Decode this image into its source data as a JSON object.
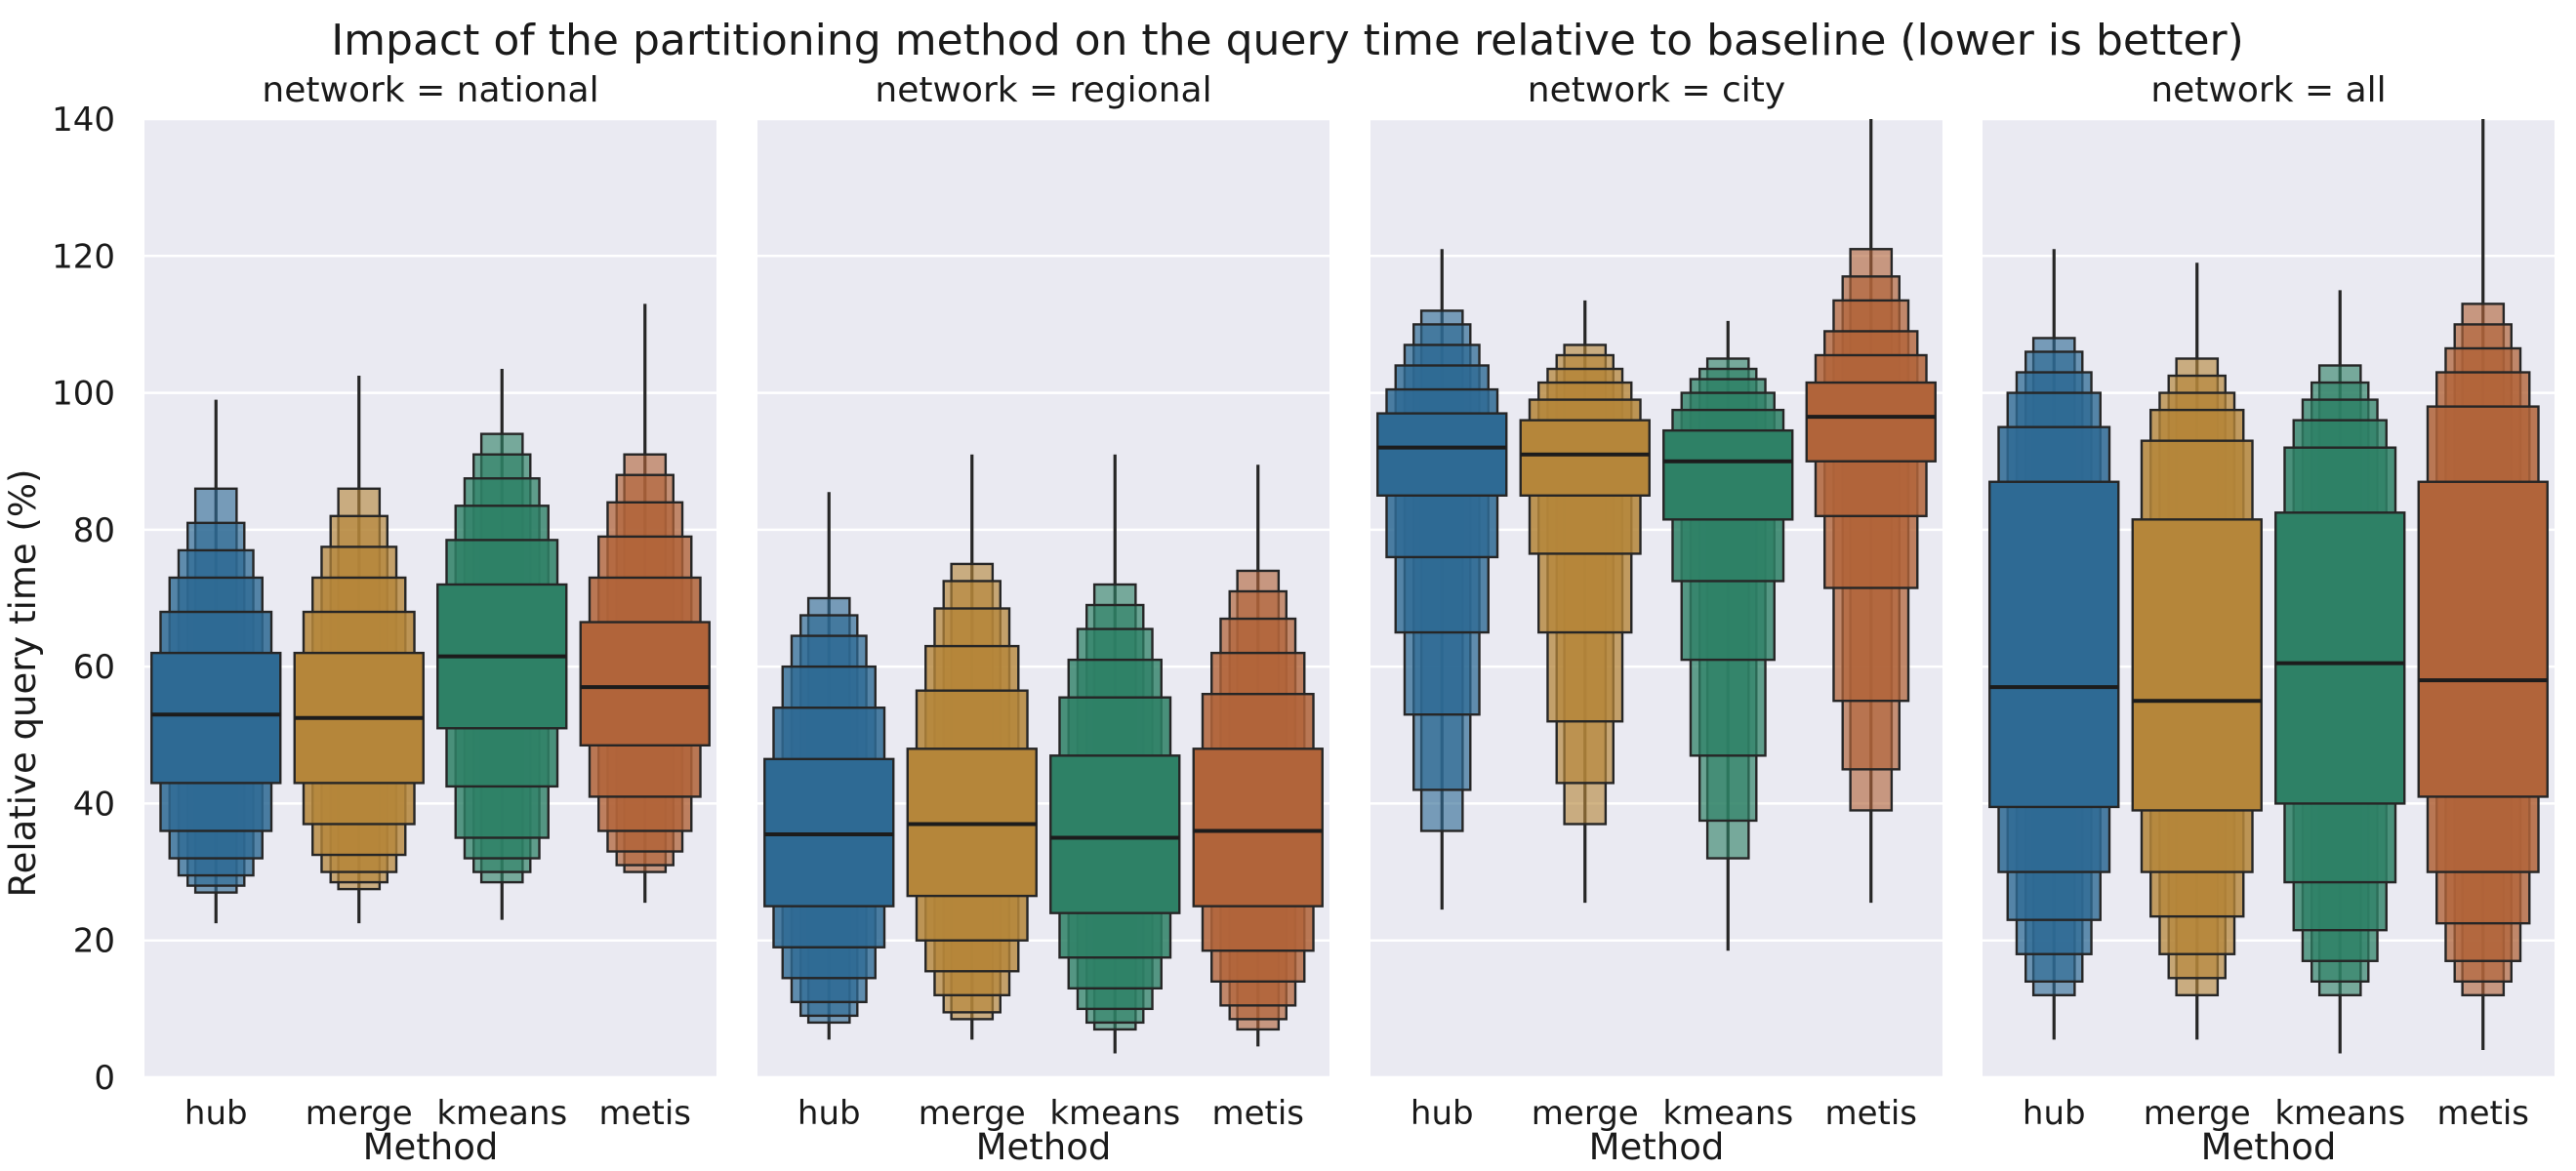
{
  "chart_data": {
    "type": "boxen",
    "title": "Impact of the partitioning method on the query time relative to baseline (lower is better)",
    "ylabel": "Relative query time (%)",
    "xlabel": "Method",
    "ylim": [
      0,
      140
    ],
    "yticks": [
      0,
      20,
      40,
      60,
      80,
      100,
      120,
      140
    ],
    "grid": true,
    "categories": [
      "hub",
      "merge",
      "kmeans",
      "metis"
    ],
    "colors": {
      "hub": "#2e6a94",
      "merge": "#b5863a",
      "kmeans": "#2e8166",
      "metis": "#b1643a",
      "panel_bg": "#eaeaf2",
      "edge": "#262626"
    },
    "facets": [
      {
        "title": "network = national",
        "series": [
          {
            "name": "hub",
            "median": 53,
            "levels": [
              [
                43,
                62
              ],
              [
                36,
                68
              ],
              [
                32,
                73
              ],
              [
                29.5,
                77
              ],
              [
                28,
                81
              ],
              [
                27,
                86
              ]
            ],
            "whisker": [
              22.5,
              99
            ]
          },
          {
            "name": "merge",
            "median": 52.5,
            "levels": [
              [
                43,
                62
              ],
              [
                37,
                68
              ],
              [
                32.5,
                73
              ],
              [
                30,
                77.5
              ],
              [
                28.5,
                82
              ],
              [
                27.5,
                86
              ]
            ],
            "whisker": [
              22.5,
              102.5
            ]
          },
          {
            "name": "kmeans",
            "median": 61.5,
            "levels": [
              [
                51,
                72
              ],
              [
                42.5,
                78.5
              ],
              [
                35,
                83.5
              ],
              [
                32,
                87.5
              ],
              [
                30,
                91
              ],
              [
                28.5,
                94
              ]
            ],
            "whisker": [
              23,
              103.5
            ]
          },
          {
            "name": "metis",
            "median": 57,
            "levels": [
              [
                48.5,
                66.5
              ],
              [
                41,
                73
              ],
              [
                36,
                79
              ],
              [
                33,
                84
              ],
              [
                31,
                88
              ],
              [
                30,
                91
              ]
            ],
            "whisker": [
              25.5,
              113
            ]
          }
        ]
      },
      {
        "title": "network = regional",
        "series": [
          {
            "name": "hub",
            "median": 35.5,
            "levels": [
              [
                25,
                46.5
              ],
              [
                19,
                54
              ],
              [
                14.5,
                60
              ],
              [
                11,
                64.5
              ],
              [
                9,
                67.5
              ],
              [
                8,
                70
              ]
            ],
            "whisker": [
              5.5,
              85.5
            ]
          },
          {
            "name": "merge",
            "median": 37,
            "levels": [
              [
                26.5,
                48
              ],
              [
                20,
                56.5
              ],
              [
                15.5,
                63
              ],
              [
                12,
                68.5
              ],
              [
                9.5,
                72.5
              ],
              [
                8.5,
                75
              ]
            ],
            "whisker": [
              5.5,
              91
            ]
          },
          {
            "name": "kmeans",
            "median": 35,
            "levels": [
              [
                24,
                47
              ],
              [
                17.5,
                55.5
              ],
              [
                13,
                61
              ],
              [
                10,
                65.5
              ],
              [
                8,
                69
              ],
              [
                7,
                72
              ]
            ],
            "whisker": [
              3.5,
              91
            ]
          },
          {
            "name": "metis",
            "median": 36,
            "levels": [
              [
                25,
                48
              ],
              [
                18.5,
                56
              ],
              [
                14,
                62
              ],
              [
                10.5,
                67
              ],
              [
                8.5,
                71
              ],
              [
                7,
                74
              ]
            ],
            "whisker": [
              4.5,
              89.5
            ]
          }
        ]
      },
      {
        "title": "network = city",
        "series": [
          {
            "name": "hub",
            "median": 92,
            "levels": [
              [
                85,
                97
              ],
              [
                76,
                100.5
              ],
              [
                65,
                104
              ],
              [
                53,
                107
              ],
              [
                42,
                110
              ],
              [
                36,
                112
              ]
            ],
            "whisker": [
              24.5,
              121
            ]
          },
          {
            "name": "merge",
            "median": 91,
            "levels": [
              [
                85,
                96
              ],
              [
                76.5,
                99
              ],
              [
                65,
                101.5
              ],
              [
                52,
                103.5
              ],
              [
                43,
                105.5
              ],
              [
                37,
                107
              ]
            ],
            "whisker": [
              25.5,
              113.5
            ]
          },
          {
            "name": "kmeans",
            "median": 90,
            "levels": [
              [
                81.5,
                94.5
              ],
              [
                72.5,
                97.5
              ],
              [
                61,
                100
              ],
              [
                47,
                102
              ],
              [
                37.5,
                103.5
              ],
              [
                32,
                105
              ]
            ],
            "whisker": [
              18.5,
              110.5
            ]
          },
          {
            "name": "metis",
            "median": 96.5,
            "levels": [
              [
                90,
                101.5
              ],
              [
                82,
                105.5
              ],
              [
                71.5,
                109
              ],
              [
                55,
                113.5
              ],
              [
                45,
                117
              ],
              [
                39,
                121
              ]
            ],
            "whisker": [
              25.5,
              140
            ]
          }
        ]
      },
      {
        "title": "network = all",
        "series": [
          {
            "name": "hub",
            "median": 57,
            "levels": [
              [
                39.5,
                87
              ],
              [
                30,
                95
              ],
              [
                23,
                100
              ],
              [
                18,
                103
              ],
              [
                14,
                106
              ],
              [
                12,
                108
              ]
            ],
            "whisker": [
              5.5,
              121
            ]
          },
          {
            "name": "merge",
            "median": 55,
            "levels": [
              [
                39,
                81.5
              ],
              [
                30,
                93
              ],
              [
                23.5,
                97.5
              ],
              [
                18,
                100
              ],
              [
                14.5,
                102.5
              ],
              [
                12,
                105
              ]
            ],
            "whisker": [
              5.5,
              119
            ]
          },
          {
            "name": "kmeans",
            "median": 60.5,
            "levels": [
              [
                40,
                82.5
              ],
              [
                28.5,
                92
              ],
              [
                21.5,
                96
              ],
              [
                17,
                99
              ],
              [
                14,
                101.5
              ],
              [
                12,
                104
              ]
            ],
            "whisker": [
              3.5,
              115
            ]
          },
          {
            "name": "metis",
            "median": 58,
            "levels": [
              [
                41,
                87
              ],
              [
                30,
                98
              ],
              [
                22.5,
                103
              ],
              [
                17,
                106.5
              ],
              [
                14,
                110
              ],
              [
                12,
                113
              ]
            ],
            "whisker": [
              4,
              140
            ]
          }
        ]
      }
    ]
  }
}
